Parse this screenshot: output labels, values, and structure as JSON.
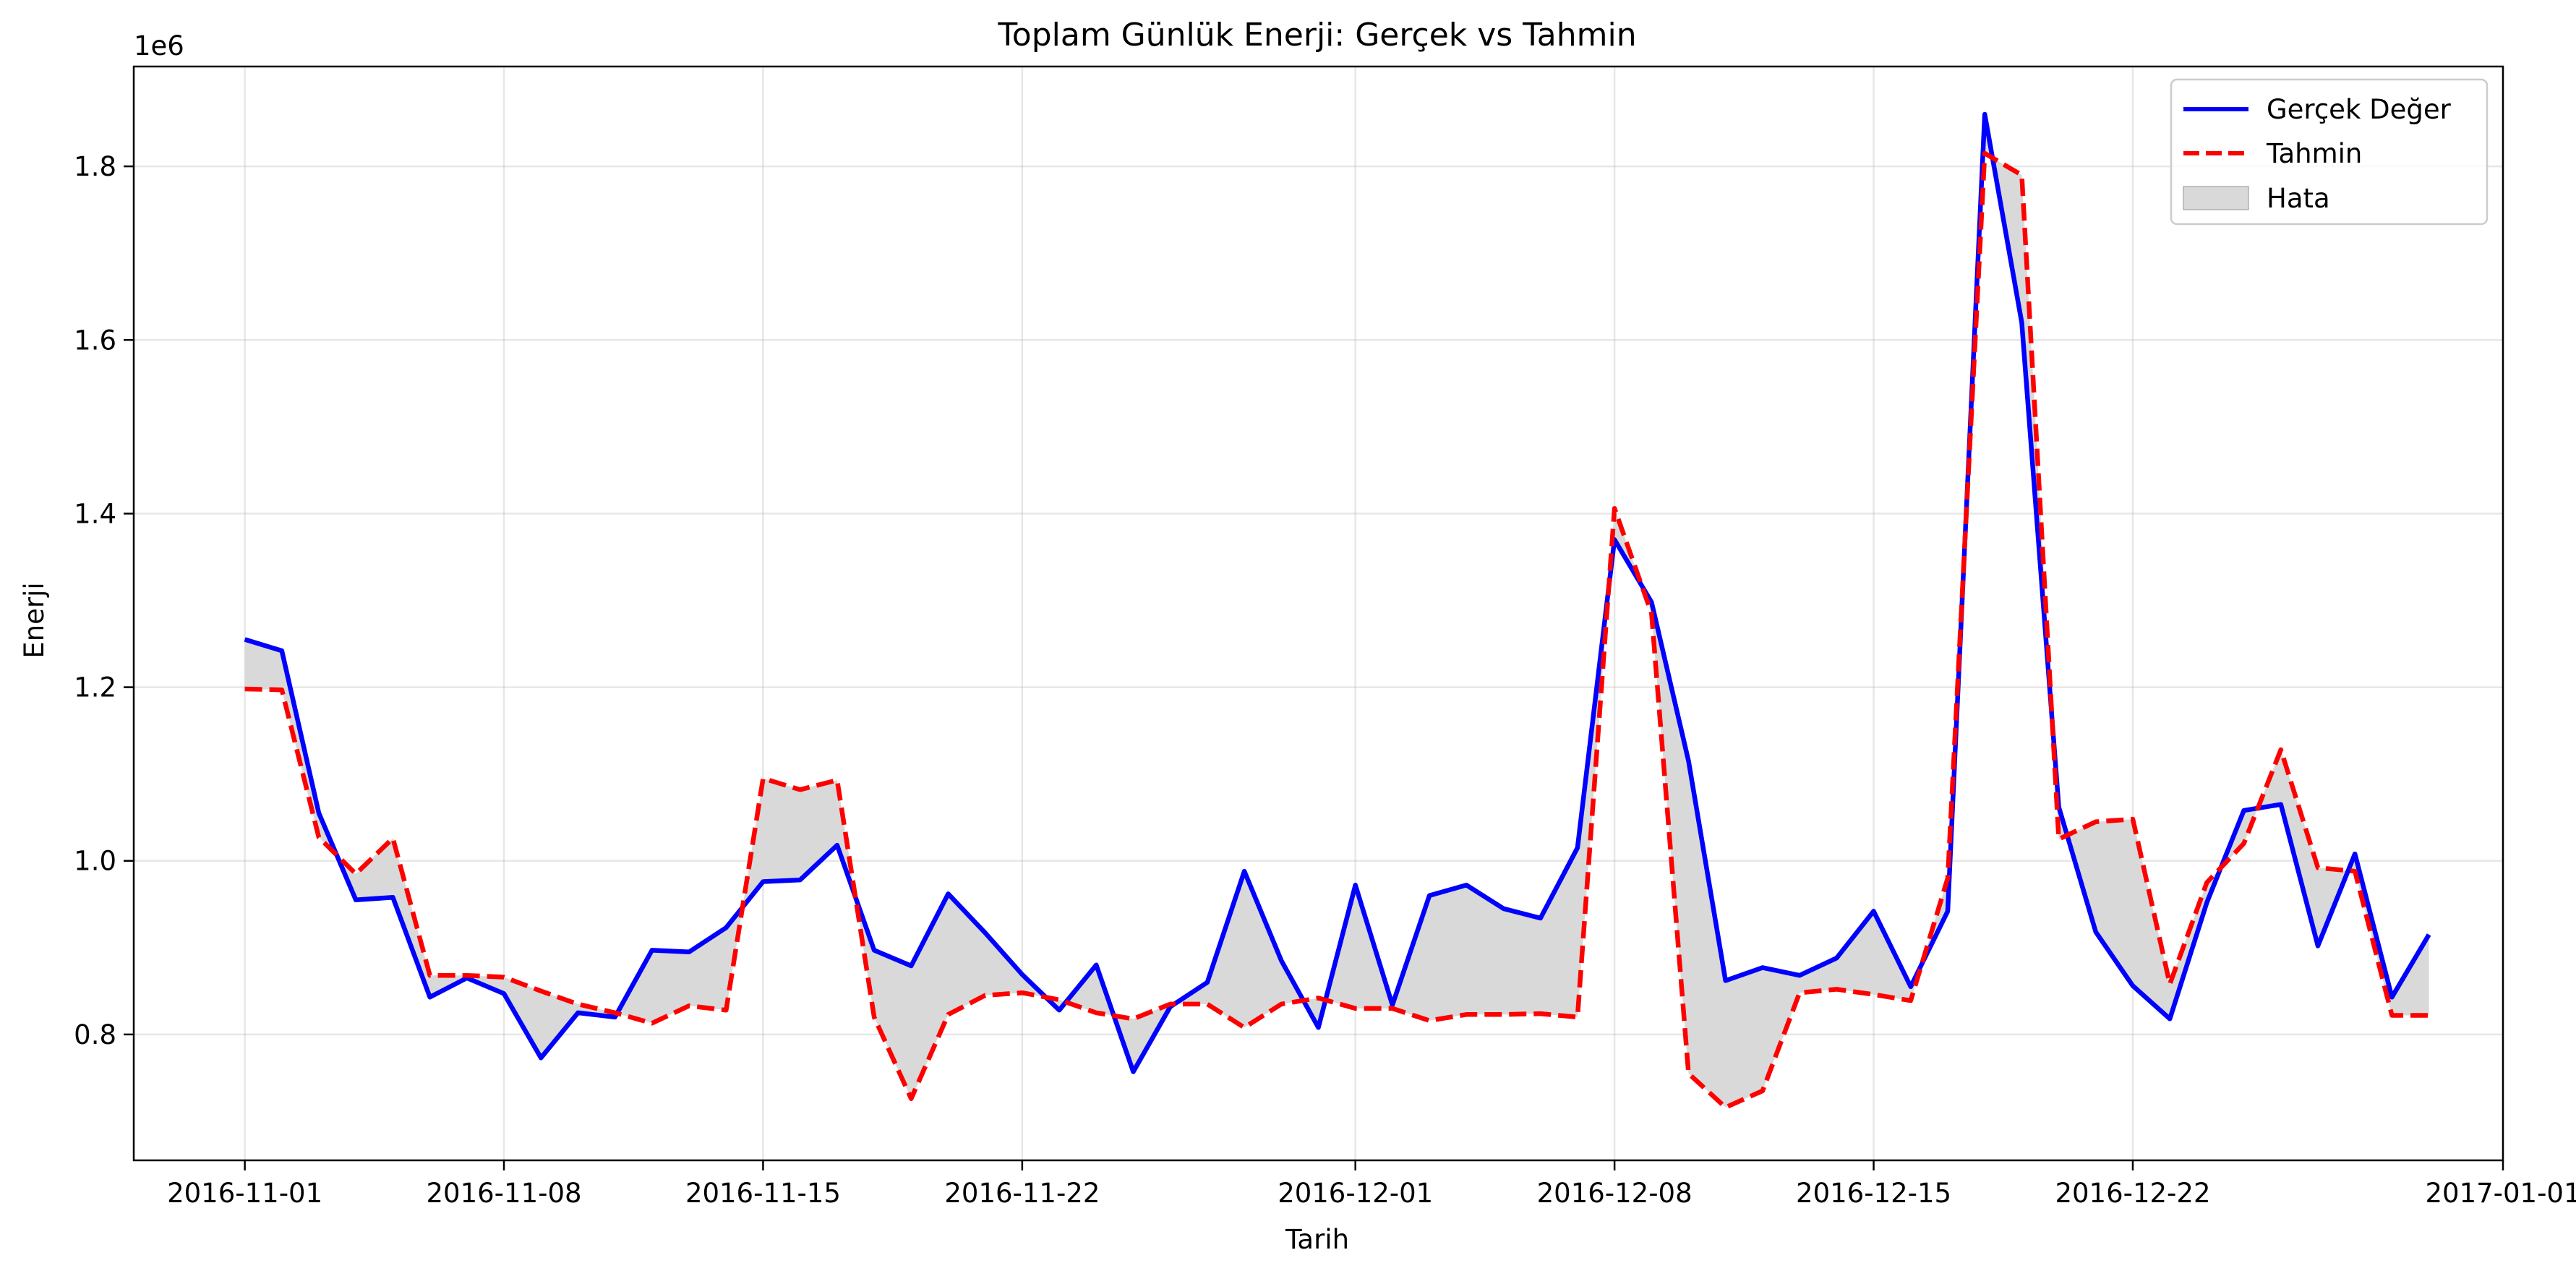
{
  "chart_data": {
    "type": "line",
    "title": "Toplam Günlük Enerji: Gerçek vs Tahmin",
    "xlabel": "Tarih",
    "ylabel": "Enerji",
    "y_offset_label": "1e6",
    "x_start": "2016-11-01",
    "x_end": "2016-12-30",
    "xlim": [
      "2016-10-29",
      "2017-01-01"
    ],
    "ylim": [
      0.655,
      1.915
    ],
    "x_ticks": [
      "2016-11-01",
      "2016-11-08",
      "2016-11-15",
      "2016-11-22",
      "2016-12-01",
      "2016-12-08",
      "2016-12-15",
      "2016-12-22",
      "2017-01-01"
    ],
    "y_ticks": [
      "0.8",
      "1.0",
      "1.2",
      "1.4",
      "1.6",
      "1.8"
    ],
    "grid": true,
    "legend_position": "top-right",
    "series": [
      {
        "name": "Gerçek Değer",
        "style": "solid",
        "color": "#0000ff",
        "values": [
          1.255,
          1.242,
          1.055,
          0.955,
          0.958,
          0.843,
          0.865,
          0.847,
          0.773,
          0.825,
          0.82,
          0.897,
          0.895,
          0.923,
          0.976,
          0.978,
          1.018,
          0.897,
          0.879,
          0.962,
          0.917,
          0.869,
          0.828,
          0.88,
          0.757,
          0.832,
          0.86,
          0.988,
          0.885,
          0.808,
          0.972,
          0.834,
          0.96,
          0.972,
          0.945,
          0.934,
          1.015,
          1.37,
          1.298,
          1.115,
          0.862,
          0.877,
          0.868,
          0.888,
          0.942,
          0.855,
          0.942,
          1.86,
          1.62,
          1.062,
          0.918,
          0.856,
          0.818,
          0.952,
          1.058,
          1.065,
          0.902,
          1.008,
          0.843,
          0.915
        ]
      },
      {
        "name": "Tahmin",
        "style": "dashed",
        "color": "#ff0000",
        "values": [
          1.198,
          1.197,
          1.027,
          0.985,
          1.026,
          0.868,
          0.868,
          0.866,
          0.85,
          0.835,
          0.825,
          0.813,
          0.833,
          0.828,
          1.095,
          1.082,
          1.093,
          0.82,
          0.726,
          0.823,
          0.845,
          0.848,
          0.84,
          0.825,
          0.818,
          0.835,
          0.835,
          0.808,
          0.835,
          0.842,
          0.83,
          0.83,
          0.816,
          0.823,
          0.823,
          0.824,
          0.82,
          1.406,
          1.285,
          0.755,
          0.716,
          0.735,
          0.848,
          0.852,
          0.846,
          0.839,
          0.98,
          1.815,
          1.79,
          1.025,
          1.045,
          1.048,
          0.858,
          0.975,
          1.02,
          1.128,
          0.992,
          0.988,
          0.822,
          0.822
        ]
      }
    ],
    "fill_between_name": "Hata",
    "fill_color": "#d9d9d9"
  }
}
